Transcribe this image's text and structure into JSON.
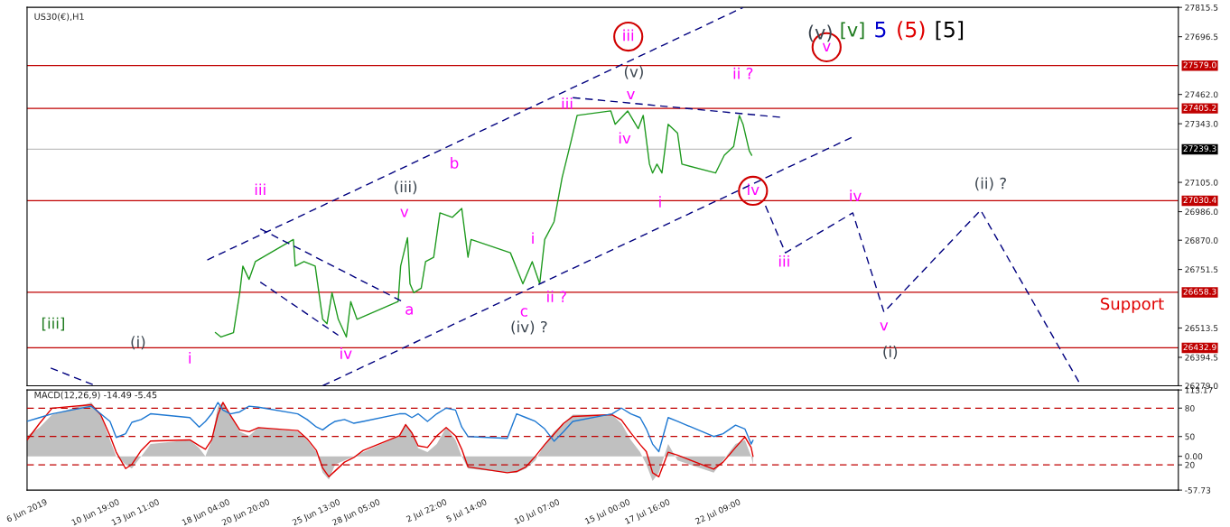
{
  "chart_data": [
    {
      "type": "line",
      "title": "US30(€),H1",
      "xlim": [
        "2019-06-06T05:00",
        "2019-08-22T03:00"
      ],
      "ylim": [
        26279.0,
        27815.5
      ],
      "tick_labels": "y",
      "grid": false,
      "yticks": [
        {
          "value": 26279.0,
          "label": "26279.0"
        },
        {
          "value": 26394.5,
          "label": "26394.5"
        },
        {
          "value": 26513.5,
          "label": "26513.5"
        },
        {
          "value": 26751.5,
          "label": "26751.5"
        },
        {
          "value": 26870.0,
          "label": "26870.0"
        },
        {
          "value": 26986.0,
          "label": "26986.0"
        },
        {
          "value": 27105.0,
          "label": "27105.0"
        },
        {
          "value": 27343.0,
          "label": "27343.0"
        },
        {
          "value": 27462.0,
          "label": "27462.0"
        },
        {
          "value": 27696.5,
          "label": "27696.5"
        },
        {
          "value": 27815.5,
          "label": "27815.5"
        }
      ],
      "ref_lines": [
        {
          "axis": "y",
          "value": 27579.0,
          "label": "27579.0",
          "color": "#c00000",
          "line_style": "solid"
        },
        {
          "axis": "y",
          "value": 27405.2,
          "label": "27405.2",
          "color": "#c00000",
          "line_style": "solid"
        },
        {
          "axis": "y",
          "value": 27239.3,
          "label": "27239.3",
          "color": "#c0c0c0",
          "line_style": "solid"
        },
        {
          "axis": "y",
          "value": 27030.4,
          "label": "27030.4",
          "color": "#c00000",
          "line_style": "solid"
        },
        {
          "axis": "y",
          "value": 26658.3,
          "label": "26658.3",
          "color": "#c00000",
          "line_style": "solid"
        },
        {
          "axis": "y",
          "value": 26432.9,
          "label": "26432.9",
          "color": "#c00000",
          "line_style": "solid"
        }
      ],
      "series": [
        {
          "color": "#1f9a1f",
          "line_style": "solid",
          "x": [
            "2019-06-18T19:00",
            "2019-06-19T04:00",
            "2019-06-20T00:00",
            "2019-06-20T10:00",
            "2019-06-20T15:00",
            "2019-06-21T01:00",
            "2019-06-21T11:00",
            "2019-06-24T00:00",
            "2019-06-24T03:00",
            "2019-06-24T17:00",
            "2019-06-25T11:00",
            "2019-06-25T23:00",
            "2019-06-26T06:00",
            "2019-06-26T14:00",
            "2019-06-27T00:00",
            "2019-06-27T13:00",
            "2019-06-27T20:00",
            "2019-06-28T06:00",
            "2019-07-01T00:00",
            "2019-07-01T04:00",
            "2019-07-01T15:00",
            "2019-07-01T19:00",
            "2019-07-02T01:00",
            "2019-07-02T13:00",
            "2019-07-02T20:00",
            "2019-07-03T09:00",
            "2019-07-03T19:00",
            "2019-07-04T15:00",
            "2019-07-05T06:00",
            "2019-07-05T16:00",
            "2019-07-05T21:00",
            "2019-07-08T12:00",
            "2019-07-09T08:00",
            "2019-07-09T23:00",
            "2019-07-10T11:00",
            "2019-07-10T19:00",
            "2019-07-11T10:00",
            "2019-07-11T23:00",
            "2019-07-12T13:00",
            "2019-07-12T23:00",
            "2019-07-15T05:00",
            "2019-07-15T12:00",
            "2019-07-16T08:00",
            "2019-07-17T01:00",
            "2019-07-17T09:00",
            "2019-07-17T19:00",
            "2019-07-18T00:00",
            "2019-07-18T07:00",
            "2019-07-18T15:00",
            "2019-07-19T01:00",
            "2019-07-19T16:00",
            "2019-07-19T23:00",
            "2019-07-22T05:00",
            "2019-07-22T19:00",
            "2019-07-23T10:00",
            "2019-07-23T19:00",
            "2019-07-24T01:00",
            "2019-07-24T11:00",
            "2019-07-24T15:00"
          ],
          "values": [
            26495,
            26477,
            26495,
            26657,
            26765,
            26711,
            26783,
            26873,
            26765,
            26783,
            26765,
            26549,
            26531,
            26657,
            26549,
            26477,
            26621,
            26549,
            26621,
            26765,
            26880,
            26693,
            26657,
            26675,
            26783,
            26801,
            26981,
            26963,
            26999,
            26801,
            26873,
            26819,
            26693,
            26783,
            26693,
            26873,
            26945,
            27125,
            27269,
            27377,
            27395,
            27341,
            27395,
            27323,
            27377,
            27179,
            27143,
            27179,
            27143,
            27341,
            27305,
            27179,
            27143,
            27215,
            27251,
            27377,
            27341,
            27233,
            27215
          ]
        },
        {
          "color": "#00007f",
          "line_style": "dashed",
          "x": [
            "2019-06-18T06:00",
            "2019-07-24T01:00"
          ],
          "values": [
            26790,
            27815
          ]
        },
        {
          "color": "#00007f",
          "line_style": "dashed",
          "x": [
            "2019-06-25T23:00",
            "2019-07-31T07:00"
          ],
          "values": [
            26279,
            27287
          ]
        },
        {
          "color": "#00007f",
          "line_style": "dashed",
          "x": [
            "2019-07-12T16:00",
            "2019-07-26T14:00"
          ],
          "values": [
            27449,
            27369
          ]
        },
        {
          "color": "#00007f",
          "line_style": "dashed",
          "x": [
            "2019-06-21T19:00",
            "2019-07-01T07:00"
          ],
          "values": [
            26916,
            26621
          ]
        },
        {
          "color": "#00007f",
          "line_style": "dashed",
          "x": [
            "2019-06-21T19:00",
            "2019-06-27T00:00"
          ],
          "values": [
            26700,
            26484
          ]
        },
        {
          "color": "#00007f",
          "line_style": "dashed",
          "x": [
            "2019-06-07T19:00",
            "2019-06-10T19:00"
          ],
          "values": [
            26351,
            26279
          ]
        },
        {
          "color": "#00007f",
          "line_style": "dashed",
          "x": [
            "2019-07-25T13:00",
            "2019-07-26T21:00",
            "2019-07-31T09:00",
            "2019-08-02T11:00",
            "2019-08-08T22:00",
            "2019-08-15T15:00"
          ],
          "values": [
            27010,
            26819,
            26981,
            26578,
            26992,
            26279
          ]
        }
      ],
      "annotations": [
        "[iii]",
        "(i)",
        "i",
        "iii",
        "iv",
        "(iii)",
        "v",
        "a",
        "b",
        "c",
        "(iv) ?",
        "i",
        "ii ?",
        "iii",
        "iv",
        "v",
        "(v)",
        "iii",
        "i",
        "ii ?",
        "iv",
        "v",
        "(v)",
        "[v]",
        "5",
        "(5)",
        "[5]",
        "iii",
        "iv",
        "v",
        "(i)",
        "(ii) ?",
        "Support"
      ]
    },
    {
      "type": "line",
      "title": "MACD(12,26,9) -14.49 -5.45",
      "xlim": [
        "2019-06-06T05:00",
        "2019-08-22T03:00"
      ],
      "ylim": [
        -57.73,
        113.17
      ],
      "y2lim": [
        -6.7,
        99.2
      ],
      "grid": false,
      "xticks": [
        {
          "value": "2019-06-06T05:00",
          "label": "6 Jun 2019"
        },
        {
          "value": "2019-06-10T19:00",
          "label": "10 Jun 19:00"
        },
        {
          "value": "2019-06-13T11:00",
          "label": "13 Jun 11:00"
        },
        {
          "value": "2019-06-18T04:00",
          "label": "18 Jun 04:00"
        },
        {
          "value": "2019-06-20T20:00",
          "label": "20 Jun 20:00"
        },
        {
          "value": "2019-06-25T13:00",
          "label": "25 Jun 13:00"
        },
        {
          "value": "2019-06-28T05:00",
          "label": "28 Jun 05:00"
        },
        {
          "value": "2019-07-02T22:00",
          "label": "2 Jul 22:00"
        },
        {
          "value": "2019-07-05T14:00",
          "label": "5 Jul 14:00"
        },
        {
          "value": "2019-07-10T07:00",
          "label": "10 Jul 07:00"
        },
        {
          "value": "2019-07-15T00:00",
          "label": "15 Jul 00:00"
        },
        {
          "value": "2019-07-17T16:00",
          "label": "17 Jul 16:00"
        },
        {
          "value": "2019-07-22T09:00",
          "label": "22 Jul 09:00"
        }
      ],
      "yticks": [
        {
          "value": -57.73,
          "label": "-57.73"
        },
        {
          "value": 0,
          "label": "0.00"
        },
        {
          "value": 113.17,
          "label": "113.17"
        }
      ],
      "y2ticks": [
        20,
        50,
        80
      ],
      "ref_lines": [
        {
          "axis": "y2",
          "value": 80,
          "color": "#c00000",
          "line_style": "dashed"
        },
        {
          "axis": "y2",
          "value": 50,
          "color": "#c00000",
          "line_style": "dashed"
        },
        {
          "axis": "y2",
          "value": 20,
          "color": "#c00000",
          "line_style": "dashed"
        }
      ],
      "x": [
        "2019-06-06T05:00",
        "2019-06-07T01:00",
        "2019-06-07T21:00",
        "2019-06-10T12:00",
        "2019-06-11T03:00",
        "2019-06-11T18:00",
        "2019-06-12T04:00",
        "2019-06-12T19:00",
        "2019-06-13T05:00",
        "2019-06-13T20:00",
        "2019-06-14T11:00",
        "2019-06-17T02:00",
        "2019-06-17T17:00",
        "2019-06-18T03:00",
        "2019-06-18T13:00",
        "2019-06-18T23:00",
        "2019-06-19T07:00",
        "2019-06-19T19:00",
        "2019-06-20T10:00",
        "2019-06-21T01:00",
        "2019-06-21T16:00",
        "2019-06-24T07:00",
        "2019-06-24T22:00",
        "2019-06-25T13:00",
        "2019-06-25T23:00",
        "2019-06-26T09:00",
        "2019-06-26T19:00",
        "2019-06-27T10:00",
        "2019-06-28T01:00",
        "2019-06-28T16:00",
        "2019-07-01T02:00",
        "2019-07-01T12:00",
        "2019-07-01T22:00",
        "2019-07-02T08:00",
        "2019-07-02T23:00",
        "2019-07-03T14:00",
        "2019-07-04T05:00",
        "2019-07-04T20:00",
        "2019-07-05T06:00",
        "2019-07-05T16:00",
        "2019-07-08T07:00",
        "2019-07-08T22:00",
        "2019-07-09T13:00",
        "2019-07-10T04:00",
        "2019-07-10T19:00",
        "2019-07-11T10:00",
        "2019-07-12T01:00",
        "2019-07-12T16:00",
        "2019-07-15T07:00",
        "2019-07-15T22:00",
        "2019-07-16T13:00",
        "2019-07-17T04:00",
        "2019-07-17T14:00",
        "2019-07-18T00:00",
        "2019-07-18T10:00",
        "2019-07-19T01:00",
        "2019-07-19T16:00",
        "2019-07-22T02:00",
        "2019-07-22T17:00",
        "2019-07-23T13:00",
        "2019-07-24T04:00",
        "2019-07-24T14:00",
        "2019-07-24T17:00"
      ],
      "series": [
        {
          "type": "area",
          "color": "#c0c0c0",
          "values": [
            35,
            49,
            71,
            92,
            71,
            28,
            0,
            -14,
            -21,
            0,
            21,
            28,
            14,
            0,
            28,
            85,
            92,
            71,
            42,
            35,
            49,
            42,
            28,
            7,
            -28,
            -40,
            -14,
            -7,
            0,
            7,
            35,
            56,
            42,
            14,
            7,
            21,
            49,
            28,
            0,
            -21,
            -28,
            -28,
            -21,
            -7,
            21,
            42,
            56,
            71,
            71,
            56,
            28,
            7,
            -14,
            -42,
            -28,
            21,
            -7,
            -28,
            -7,
            21,
            28,
            0,
            -14
          ]
        },
        {
          "color": "#e00000",
          "line_style": "solid",
          "values": [
            28,
            56,
            82,
            88,
            71,
            35,
            7,
            -21,
            -14,
            10,
            26,
            28,
            18,
            12,
            28,
            71,
            92,
            70,
            45,
            42,
            49,
            44,
            30,
            10,
            -20,
            -35,
            -25,
            -10,
            -2,
            10,
            35,
            54,
            40,
            18,
            15,
            35,
            49,
            35,
            12,
            -18,
            -28,
            -26,
            -18,
            0,
            20,
            38,
            56,
            68,
            71,
            62,
            40,
            20,
            8,
            -28,
            -35,
            7,
            2,
            -22,
            -10,
            15,
            33,
            15,
            0
          ]
        },
        {
          "color": "#1e78d2",
          "line_style": "solid",
          "axis": "y2",
          "values": [
            66,
            70,
            74,
            82,
            74,
            66,
            49,
            53,
            65,
            68,
            74,
            70,
            60,
            66,
            74,
            86,
            78,
            74,
            76,
            82,
            81,
            74,
            68,
            60,
            57,
            62,
            66,
            68,
            64,
            66,
            74,
            74,
            70,
            74,
            66,
            74,
            80,
            78,
            60,
            50,
            48,
            74,
            70,
            66,
            58,
            45,
            55,
            66,
            74,
            80,
            74,
            70,
            58,
            42,
            34,
            70,
            66,
            50,
            53,
            62,
            58,
            42,
            46
          ]
        }
      ]
    }
  ]
}
